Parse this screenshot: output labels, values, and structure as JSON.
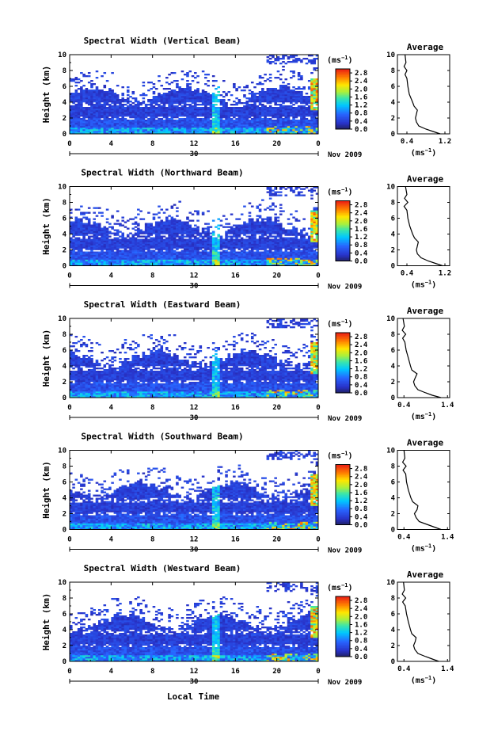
{
  "chart_data": {
    "type": "heatmap",
    "x_axis": {
      "label": "Local Time",
      "ticks": [
        "0",
        "4",
        "8",
        "12",
        "16",
        "20",
        "0"
      ],
      "lim": [
        0,
        24
      ],
      "date_label": "30",
      "month_label": "Nov 2009"
    },
    "y_axis": {
      "label": "Height (km)",
      "ticks": [
        "0",
        "2",
        "4",
        "6",
        "8",
        "10"
      ],
      "lim": [
        0,
        10
      ]
    },
    "colorbar": {
      "unit": "(ms",
      "unit_exp": "−1",
      "unit_close": ")",
      "ticks": [
        "0.0",
        "0.4",
        "0.8",
        "1.2",
        "1.6",
        "2.0",
        "2.4",
        "2.8"
      ],
      "lim": [
        0,
        3.0
      ]
    },
    "profile_xlabel": "(ms",
    "profile_xlabel_exp": "−1",
    "profile_xlabel_close": ")",
    "profile_title": "Average",
    "panels": [
      {
        "title": "Spectral Width (Vertical Beam)",
        "profile_ticks": [
          "0.4",
          "1.2"
        ],
        "profile_xlim": [
          0.2,
          1.3
        ],
        "profile": [
          [
            0,
            1.1
          ],
          [
            0.3,
            0.95
          ],
          [
            0.6,
            0.8
          ],
          [
            1.0,
            0.65
          ],
          [
            1.5,
            0.6
          ],
          [
            2.0,
            0.58
          ],
          [
            2.5,
            0.6
          ],
          [
            3.0,
            0.62
          ],
          [
            3.5,
            0.55
          ],
          [
            4.0,
            0.52
          ],
          [
            5.0,
            0.45
          ],
          [
            6.0,
            0.42
          ],
          [
            7.0,
            0.4
          ],
          [
            7.5,
            0.36
          ],
          [
            8.0,
            0.4
          ],
          [
            8.5,
            0.34
          ],
          [
            9.0,
            0.38
          ],
          [
            10.0,
            0.36
          ]
        ]
      },
      {
        "title": "Spectral Width (Northward Beam)",
        "profile_ticks": [
          "0.4",
          "1.2"
        ],
        "profile_xlim": [
          0.2,
          1.3
        ],
        "profile": [
          [
            0,
            1.15
          ],
          [
            0.3,
            1.0
          ],
          [
            0.6,
            0.85
          ],
          [
            1.0,
            0.7
          ],
          [
            1.5,
            0.62
          ],
          [
            2.0,
            0.6
          ],
          [
            2.5,
            0.62
          ],
          [
            3.0,
            0.64
          ],
          [
            3.5,
            0.56
          ],
          [
            4.0,
            0.52
          ],
          [
            5.0,
            0.46
          ],
          [
            6.0,
            0.42
          ],
          [
            7.0,
            0.4
          ],
          [
            7.5,
            0.34
          ],
          [
            8.0,
            0.42
          ],
          [
            8.5,
            0.35
          ],
          [
            9.0,
            0.4
          ],
          [
            10.0,
            0.37
          ]
        ]
      },
      {
        "title": "Spectral Width (Eastward Beam)",
        "profile_ticks": [
          "0.4",
          "1.4"
        ],
        "profile_xlim": [
          0.25,
          1.45
        ],
        "profile": [
          [
            0,
            1.25
          ],
          [
            0.3,
            1.05
          ],
          [
            0.6,
            0.9
          ],
          [
            1.0,
            0.72
          ],
          [
            1.5,
            0.65
          ],
          [
            2.0,
            0.62
          ],
          [
            2.5,
            0.66
          ],
          [
            3.0,
            0.7
          ],
          [
            3.5,
            0.58
          ],
          [
            4.0,
            0.55
          ],
          [
            5.0,
            0.5
          ],
          [
            6.0,
            0.45
          ],
          [
            7.0,
            0.42
          ],
          [
            7.5,
            0.37
          ],
          [
            8.0,
            0.44
          ],
          [
            8.5,
            0.36
          ],
          [
            9.0,
            0.41
          ],
          [
            10.0,
            0.38
          ]
        ]
      },
      {
        "title": "Spectral Width (Southward Beam)",
        "profile_ticks": [
          "0.4",
          "1.4"
        ],
        "profile_xlim": [
          0.25,
          1.45
        ],
        "profile": [
          [
            0,
            1.25
          ],
          [
            0.3,
            1.1
          ],
          [
            0.6,
            0.95
          ],
          [
            1.0,
            0.75
          ],
          [
            1.5,
            0.68
          ],
          [
            2.0,
            0.64
          ],
          [
            2.5,
            0.7
          ],
          [
            3.0,
            0.72
          ],
          [
            3.5,
            0.6
          ],
          [
            4.0,
            0.56
          ],
          [
            5.0,
            0.5
          ],
          [
            6.0,
            0.46
          ],
          [
            7.0,
            0.44
          ],
          [
            7.5,
            0.38
          ],
          [
            8.0,
            0.45
          ],
          [
            8.5,
            0.37
          ],
          [
            9.0,
            0.42
          ],
          [
            10.0,
            0.4
          ]
        ]
      },
      {
        "title": "Spectral Width (Westward Beam)",
        "profile_ticks": [
          "0.4",
          "1.4"
        ],
        "profile_xlim": [
          0.25,
          1.45
        ],
        "profile": [
          [
            0,
            1.2
          ],
          [
            0.3,
            1.05
          ],
          [
            0.6,
            0.9
          ],
          [
            1.0,
            0.72
          ],
          [
            1.5,
            0.65
          ],
          [
            2.0,
            0.62
          ],
          [
            2.5,
            0.66
          ],
          [
            3.0,
            0.68
          ],
          [
            3.5,
            0.58
          ],
          [
            4.0,
            0.55
          ],
          [
            5.0,
            0.5
          ],
          [
            6.0,
            0.46
          ],
          [
            7.0,
            0.43
          ],
          [
            7.5,
            0.37
          ],
          [
            8.0,
            0.44
          ],
          [
            8.5,
            0.36
          ],
          [
            9.0,
            0.41
          ],
          [
            10.0,
            0.39
          ]
        ]
      }
    ]
  }
}
